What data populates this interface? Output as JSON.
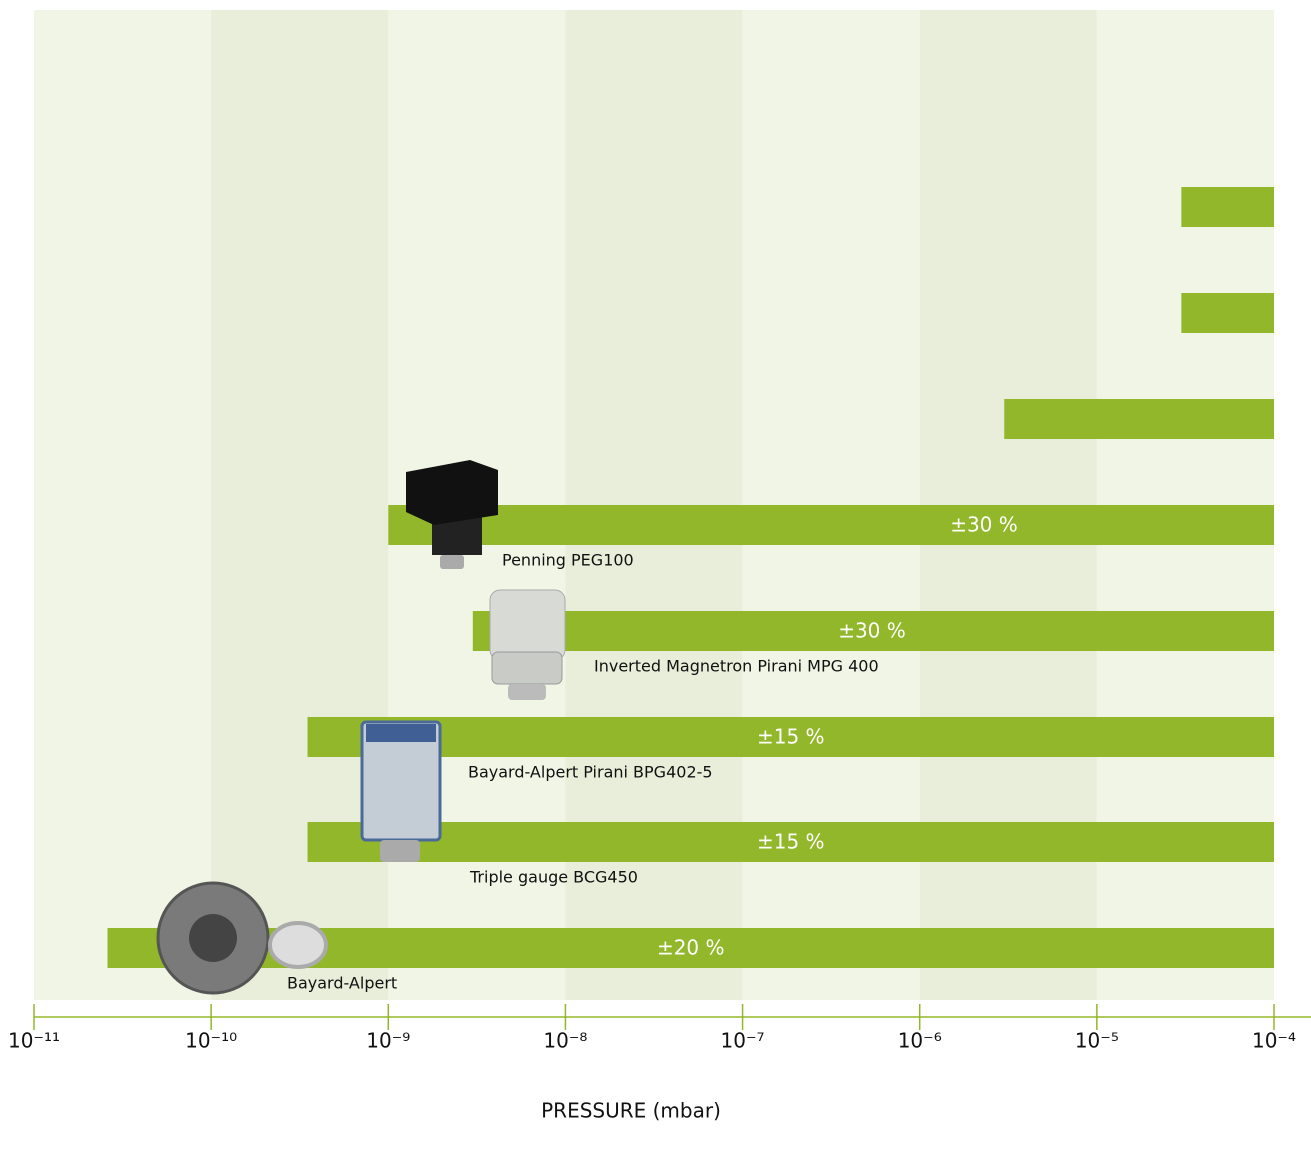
{
  "chart_data": {
    "type": "range-bar",
    "xscale": "log",
    "xlim": [
      1e-11,
      0.0001
    ],
    "xticks": [
      {
        "value": 1e-11,
        "label": "10⁻¹¹"
      },
      {
        "value": 1e-10,
        "label": "10⁻¹⁰"
      },
      {
        "value": 1e-09,
        "label": "10⁻⁹"
      },
      {
        "value": 1e-08,
        "label": "10⁻⁸"
      },
      {
        "value": 1e-07,
        "label": "10⁻⁷"
      },
      {
        "value": 1e-06,
        "label": "10⁻⁶"
      },
      {
        "value": 1e-05,
        "label": "10⁻⁵"
      },
      {
        "value": 0.0001,
        "label": "10⁻⁴"
      }
    ],
    "xlabel": "PRESSURE (mbar)",
    "color": "#92b72b",
    "categories": [
      null,
      null,
      null,
      "Penning PEG100",
      "Inverted Magnetron Pirani MPG 400",
      "Bayard-Alpert Pirani BPG402-5",
      "Triple gauge BCG450",
      "Bayard-Alpert"
    ],
    "start": [
      3e-05,
      3e-05,
      3e-06,
      1e-09,
      3e-09,
      3.5e-10,
      3.5e-10,
      2.6e-11
    ],
    "end": [
      0.0001,
      0.0001,
      0.0001,
      0.0001,
      0.0001,
      0.0001,
      0.0001,
      0.0001
    ],
    "annotations": [
      null,
      null,
      null,
      "±30 %",
      "±30 %",
      "±15 %",
      "±15 %",
      "±20 %"
    ]
  }
}
